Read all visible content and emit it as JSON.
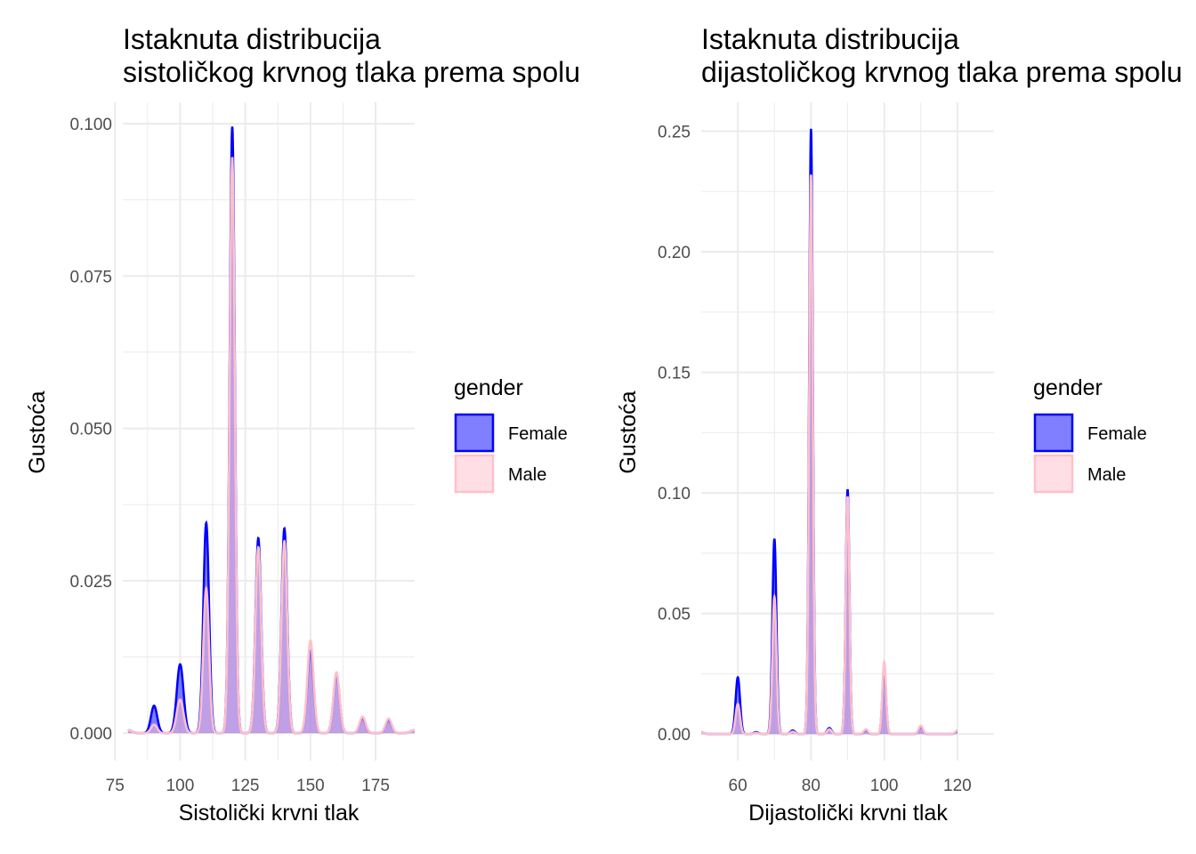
{
  "chart_data": [
    {
      "type": "area",
      "title_line1": "Istaknuta distribucija",
      "title_line2": "sistoličkog krvnog tlaka prema spolu",
      "xlabel": "Sistolički krvni tlak",
      "ylabel": "Gustoća",
      "xlim": [
        78,
        190
      ],
      "ylim": [
        -0.0045,
        0.1035
      ],
      "x_ticks": [
        75,
        100,
        125,
        150,
        175
      ],
      "x_tick_labels": [
        "75",
        "100",
        "125",
        "150",
        "175"
      ],
      "y_ticks": [
        0,
        0.025,
        0.05,
        0.075,
        0.1
      ],
      "y_tick_labels": [
        "0.000",
        "0.025",
        "0.050",
        "0.075",
        "0.100"
      ],
      "grid": true,
      "legend": {
        "title": "gender",
        "position": "right",
        "items": [
          "Female",
          "Male"
        ]
      },
      "series": [
        {
          "name": "Female",
          "fill": "#0000ff",
          "fill_opacity": 0.5,
          "stroke": "#0000ff",
          "peaks": [
            [
              80,
              0.0005,
              1.5
            ],
            [
              90,
              0.0045,
              1.2
            ],
            [
              100,
              0.0113,
              1.3
            ],
            [
              110,
              0.0345,
              1.1
            ],
            [
              120,
              0.0995,
              1.0
            ],
            [
              130,
              0.032,
              1.1
            ],
            [
              140,
              0.0336,
              1.1
            ],
            [
              150,
              0.0135,
              1.2
            ],
            [
              160,
              0.0095,
              1.2
            ],
            [
              170,
              0.0024,
              1.2
            ],
            [
              180,
              0.0021,
              1.2
            ],
            [
              190,
              0.0005,
              1.5
            ]
          ]
        },
        {
          "name": "Male",
          "fill": "#ffc0cb",
          "fill_opacity": 0.5,
          "stroke": "#ffc0cb",
          "peaks": [
            [
              80,
              0.0005,
              1.5
            ],
            [
              90,
              0.0014,
              1.2
            ],
            [
              100,
              0.0055,
              1.3
            ],
            [
              110,
              0.0238,
              1.1
            ],
            [
              120,
              0.0945,
              1.0
            ],
            [
              130,
              0.0305,
              1.1
            ],
            [
              140,
              0.0315,
              1.1
            ],
            [
              150,
              0.0152,
              1.2
            ],
            [
              160,
              0.01,
              1.2
            ],
            [
              170,
              0.0027,
              1.2
            ],
            [
              180,
              0.0024,
              1.2
            ],
            [
              190,
              0.0005,
              1.5
            ]
          ]
        }
      ]
    },
    {
      "type": "area",
      "title_line1": "Istaknuta distribucija",
      "title_line2": "dijastoličkog krvnog tlaka prema spolu",
      "xlabel": "Dijastolički krvni tlak",
      "ylabel": "Gustoća",
      "xlim": [
        50,
        130
      ],
      "ylim": [
        -0.011,
        0.262
      ],
      "x_ticks": [
        60,
        80,
        100,
        120
      ],
      "x_tick_labels": [
        "60",
        "80",
        "100",
        "120"
      ],
      "y_ticks": [
        0,
        0.05,
        0.1,
        0.15,
        0.2,
        0.25
      ],
      "y_tick_labels": [
        "0.00",
        "0.05",
        "0.10",
        "0.15",
        "0.20",
        "0.25"
      ],
      "grid": true,
      "legend": {
        "title": "gender",
        "position": "right",
        "items": [
          "Female",
          "Male"
        ]
      },
      "series": [
        {
          "name": "Female",
          "fill": "#0000ff",
          "fill_opacity": 0.5,
          "stroke": "#0000ff",
          "peaks": [
            [
              50,
              0.0008,
              0.8
            ],
            [
              60,
              0.0235,
              0.6
            ],
            [
              65,
              0.0008,
              0.6
            ],
            [
              70,
              0.081,
              0.55
            ],
            [
              75,
              0.0015,
              0.6
            ],
            [
              80,
              0.251,
              0.5
            ],
            [
              85,
              0.0025,
              0.6
            ],
            [
              90,
              0.1015,
              0.5
            ],
            [
              95,
              0.0015,
              0.6
            ],
            [
              100,
              0.027,
              0.5
            ],
            [
              110,
              0.003,
              0.6
            ],
            [
              120,
              0.0012,
              0.6
            ]
          ]
        },
        {
          "name": "Male",
          "fill": "#ffc0cb",
          "fill_opacity": 0.5,
          "stroke": "#ffc0cb",
          "peaks": [
            [
              50,
              0.0008,
              0.8
            ],
            [
              60,
              0.0125,
              0.6
            ],
            [
              65,
              0.0005,
              0.6
            ],
            [
              70,
              0.057,
              0.55
            ],
            [
              75,
              0.001,
              0.6
            ],
            [
              80,
              0.232,
              0.5
            ],
            [
              85,
              0.002,
              0.6
            ],
            [
              90,
              0.0985,
              0.5
            ],
            [
              95,
              0.002,
              0.6
            ],
            [
              100,
              0.03,
              0.5
            ],
            [
              110,
              0.0035,
              0.6
            ],
            [
              120,
              0.0015,
              0.6
            ]
          ]
        }
      ]
    }
  ]
}
